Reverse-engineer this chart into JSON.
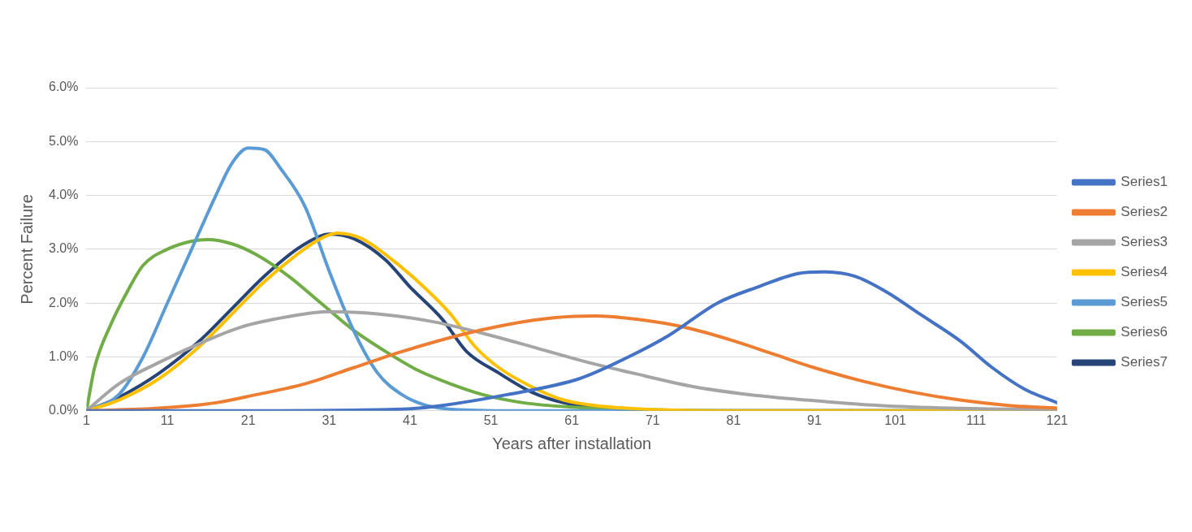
{
  "chart_data": {
    "type": "line",
    "xlabel": "Years after installation",
    "ylabel": "Percent Failure",
    "xlim": [
      1,
      121
    ],
    "xticks": [
      1,
      11,
      21,
      31,
      41,
      51,
      61,
      71,
      81,
      91,
      101,
      111,
      121
    ],
    "ylim": [
      0,
      6
    ],
    "yticks": [
      {
        "value": 0,
        "label": "0.0%"
      },
      {
        "value": 1,
        "label": "1.0%"
      },
      {
        "value": 2,
        "label": "2.0%"
      },
      {
        "value": 3,
        "label": "3.0%"
      },
      {
        "value": 4,
        "label": "4.0%"
      },
      {
        "value": 5,
        "label": "5.0%"
      },
      {
        "value": 6,
        "label": "6.0%"
      }
    ],
    "grid": "y",
    "legend": "right",
    "marker": "none",
    "line_style": "solid",
    "series": [
      {
        "name": "Series1",
        "color": "#4472c4",
        "x": [
          1,
          20,
          40,
          45,
          53,
          62,
          68,
          73,
          79,
          84,
          89,
          92,
          96,
          100,
          104,
          109,
          113,
          117,
          121
        ],
        "values": [
          0,
          0,
          0.03,
          0.1,
          0.3,
          0.6,
          1.0,
          1.4,
          2.0,
          2.3,
          2.55,
          2.58,
          2.5,
          2.2,
          1.8,
          1.3,
          0.8,
          0.4,
          0.15
        ]
      },
      {
        "name": "Series2",
        "color": "#ed7d31",
        "x": [
          1,
          10,
          17,
          22,
          28,
          34,
          40,
          47,
          53,
          59,
          64,
          69,
          75,
          81,
          86,
          91,
          97,
          103,
          109,
          115,
          121
        ],
        "values": [
          0,
          0.05,
          0.15,
          0.3,
          0.5,
          0.8,
          1.1,
          1.4,
          1.6,
          1.73,
          1.76,
          1.7,
          1.55,
          1.3,
          1.05,
          0.8,
          0.55,
          0.35,
          0.2,
          0.1,
          0.05
        ]
      },
      {
        "name": "Series3",
        "color": "#a5a5a5",
        "x": [
          1,
          5,
          10,
          15,
          20,
          26,
          31,
          37,
          44,
          51,
          57,
          63,
          70,
          76,
          83,
          90,
          99,
          108,
          121
        ],
        "values": [
          0,
          0.5,
          0.9,
          1.25,
          1.55,
          1.75,
          1.84,
          1.8,
          1.65,
          1.4,
          1.15,
          0.9,
          0.65,
          0.45,
          0.3,
          0.2,
          0.1,
          0.05,
          0.02
        ]
      },
      {
        "name": "Series4",
        "color": "#ffc000",
        "x": [
          1,
          5,
          10,
          15,
          19,
          23,
          27,
          30,
          32,
          35,
          38,
          42,
          46,
          49,
          52,
          56,
          60,
          65,
          72,
          80,
          121
        ],
        "values": [
          0,
          0.2,
          0.6,
          1.2,
          1.8,
          2.4,
          2.9,
          3.2,
          3.3,
          3.2,
          2.9,
          2.4,
          1.8,
          1.2,
          0.8,
          0.45,
          0.2,
          0.08,
          0.02,
          0,
          0
        ]
      },
      {
        "name": "Series5",
        "color": "#5b9bd5",
        "x": [
          1,
          5,
          8,
          11,
          14,
          17,
          19,
          21,
          23,
          25,
          28,
          31,
          34,
          37,
          40,
          43,
          47,
          55,
          121
        ],
        "values": [
          0,
          0.3,
          1.0,
          2.0,
          3.0,
          4.0,
          4.6,
          4.88,
          4.85,
          4.5,
          3.8,
          2.6,
          1.5,
          0.7,
          0.3,
          0.1,
          0.02,
          0,
          0
        ]
      },
      {
        "name": "Series6",
        "color": "#70ad47",
        "x": [
          1,
          2,
          4,
          6,
          8,
          11,
          14,
          16,
          19,
          22,
          26,
          30,
          34,
          38,
          42,
          46,
          50,
          55,
          61,
          68,
          80,
          121
        ],
        "values": [
          0,
          0.8,
          1.6,
          2.2,
          2.7,
          3.0,
          3.15,
          3.18,
          3.1,
          2.9,
          2.5,
          2.0,
          1.5,
          1.1,
          0.75,
          0.5,
          0.3,
          0.15,
          0.07,
          0.03,
          0,
          0
        ]
      },
      {
        "name": "Series7",
        "color": "#264478",
        "x": [
          1,
          5,
          10,
          15,
          19,
          23,
          27,
          30,
          31,
          34,
          38,
          41,
          45,
          48,
          52,
          56,
          60,
          65,
          80,
          121
        ],
        "values": [
          0,
          0.25,
          0.7,
          1.3,
          1.9,
          2.5,
          3.0,
          3.25,
          3.28,
          3.2,
          2.8,
          2.3,
          1.7,
          1.1,
          0.7,
          0.35,
          0.15,
          0.05,
          0,
          0
        ]
      }
    ]
  }
}
